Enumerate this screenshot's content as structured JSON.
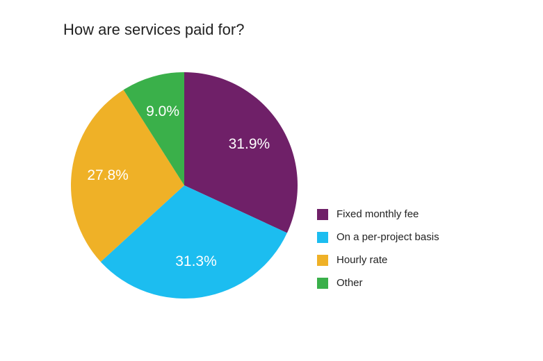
{
  "chart_data": {
    "type": "pie",
    "title": "How are services paid for?",
    "legend_position": "right",
    "slices": [
      {
        "label": "Fixed monthly fee",
        "value": 31.9,
        "value_label": "31.9%",
        "color": "#6f2068"
      },
      {
        "label": "On a per-project basis",
        "value": 31.3,
        "value_label": "31.3%",
        "color": "#1cbdf0"
      },
      {
        "label": "Hourly rate",
        "value": 27.8,
        "value_label": "27.8%",
        "color": "#efb127"
      },
      {
        "label": "Other",
        "value": 9.0,
        "value_label": "9.0%",
        "color": "#3ab04a"
      }
    ]
  }
}
